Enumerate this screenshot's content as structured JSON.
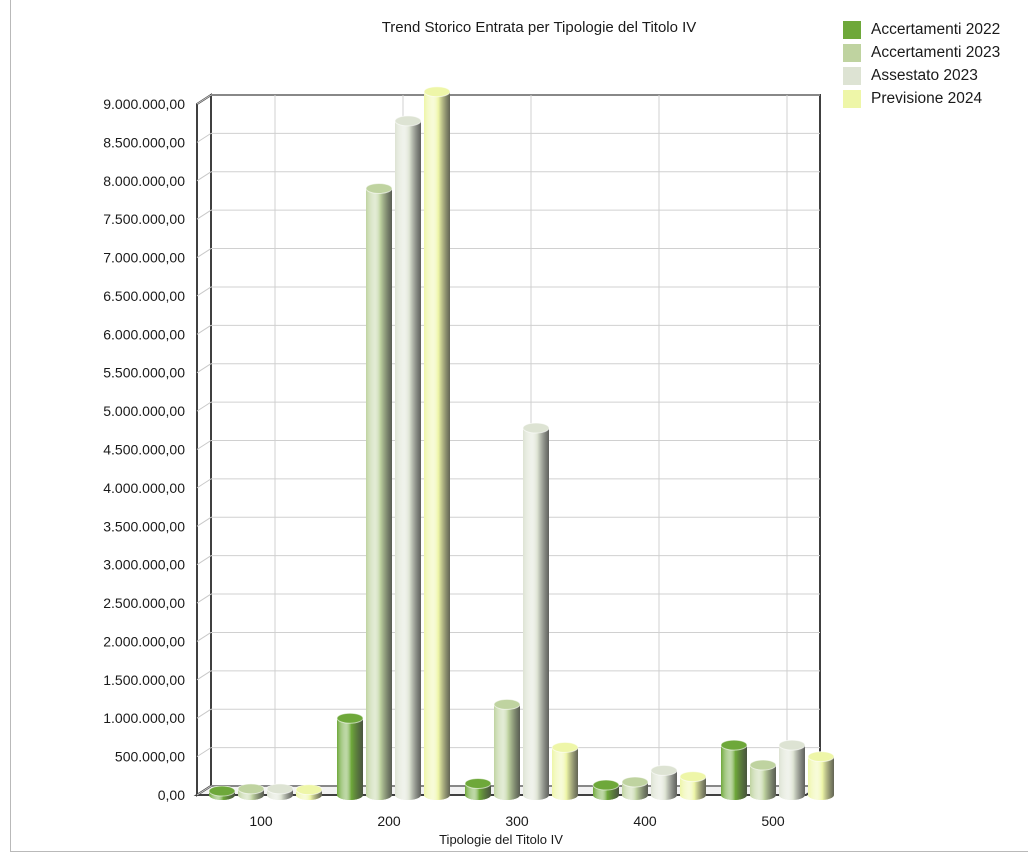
{
  "chart_data": {
    "type": "bar",
    "title": "Trend Storico Entrata per Tipologie del Titolo IV",
    "xlabel": "Tipologie del Titolo IV",
    "ylabel": "",
    "categories": [
      "100",
      "200",
      "300",
      "400",
      "500"
    ],
    "series": [
      {
        "name": "Accertamenti 2022",
        "color": "#6ea83a",
        "values": [
          50000,
          1000000,
          150000,
          130000,
          650000
        ]
      },
      {
        "name": "Accertamenti 2023",
        "color": "#bfd3a0",
        "values": [
          80000,
          7900000,
          1180000,
          170000,
          390000
        ]
      },
      {
        "name": "Assestato 2023",
        "color": "#dde3d3",
        "values": [
          80000,
          8780000,
          4780000,
          320000,
          650000
        ]
      },
      {
        "name": "Previsione 2024",
        "color": "#eef6a8",
        "values": [
          70000,
          9160000,
          620000,
          240000,
          500000
        ]
      }
    ],
    "ylim": [
      0,
      9000000
    ],
    "ytick_values": [
      0,
      500000,
      1000000,
      1500000,
      2000000,
      2500000,
      3000000,
      3500000,
      4000000,
      4500000,
      5000000,
      5500000,
      6000000,
      6500000,
      7000000,
      7500000,
      8000000,
      8500000,
      9000000
    ],
    "ytick_labels": [
      "0,00",
      "500.000,00",
      "1.000.000,00",
      "1.500.000,00",
      "2.000.000,00",
      "2.500.000,00",
      "3.000.000,00",
      "3.500.000,00",
      "4.000.000,00",
      "4.500.000,00",
      "5.000.000,00",
      "5.500.000,00",
      "6.000.000,00",
      "6.500.000,00",
      "7.000.000,00",
      "7.500.000,00",
      "8.000.000,00",
      "8.500.000,00",
      "9.000.000,00"
    ],
    "grid": true,
    "legend_position": "top-right"
  }
}
